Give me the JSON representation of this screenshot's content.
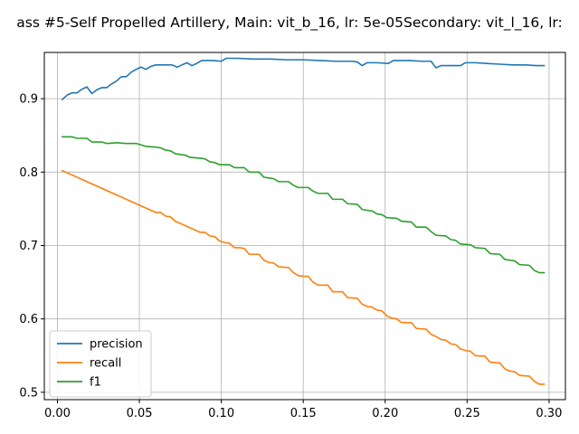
{
  "chart_data": {
    "type": "line",
    "title": "ass #5-Self Propelled Artillery, Main: vit_b_16, lr: 5e-05Secondary: vit_l_16, lr:",
    "xlabel": "",
    "ylabel": "",
    "xlim": [
      -0.008,
      0.31
    ],
    "ylim": [
      0.49,
      0.963
    ],
    "x_ticks": [
      0.0,
      0.05,
      0.1,
      0.15,
      0.2,
      0.25,
      0.3
    ],
    "x_tick_labels": [
      "0.00",
      "0.05",
      "0.10",
      "0.15",
      "0.20",
      "0.25",
      "0.30"
    ],
    "y_ticks": [
      0.5,
      0.6,
      0.7,
      0.8,
      0.9
    ],
    "y_tick_labels": [
      "0.5",
      "0.6",
      "0.7",
      "0.8",
      "0.9"
    ],
    "grid": true,
    "legend_position": "lower-left",
    "series": [
      {
        "name": "precision",
        "color": "#1f77b4",
        "points": [
          [
            0.003,
            0.899
          ],
          [
            0.006,
            0.905
          ],
          [
            0.009,
            0.908
          ],
          [
            0.012,
            0.908
          ],
          [
            0.015,
            0.913
          ],
          [
            0.018,
            0.916
          ],
          [
            0.021,
            0.907
          ],
          [
            0.024,
            0.912
          ],
          [
            0.027,
            0.915
          ],
          [
            0.03,
            0.915
          ],
          [
            0.033,
            0.92
          ],
          [
            0.036,
            0.924
          ],
          [
            0.039,
            0.93
          ],
          [
            0.042,
            0.93
          ],
          [
            0.045,
            0.936
          ],
          [
            0.048,
            0.94
          ],
          [
            0.051,
            0.943
          ],
          [
            0.054,
            0.94
          ],
          [
            0.057,
            0.944
          ],
          [
            0.06,
            0.946
          ],
          [
            0.065,
            0.946
          ],
          [
            0.07,
            0.946
          ],
          [
            0.073,
            0.943
          ],
          [
            0.076,
            0.946
          ],
          [
            0.079,
            0.949
          ],
          [
            0.082,
            0.945
          ],
          [
            0.085,
            0.948
          ],
          [
            0.088,
            0.952
          ],
          [
            0.095,
            0.952
          ],
          [
            0.1,
            0.951
          ],
          [
            0.103,
            0.955
          ],
          [
            0.11,
            0.955
          ],
          [
            0.12,
            0.954
          ],
          [
            0.13,
            0.954
          ],
          [
            0.14,
            0.953
          ],
          [
            0.15,
            0.953
          ],
          [
            0.16,
            0.952
          ],
          [
            0.17,
            0.951
          ],
          [
            0.18,
            0.951
          ],
          [
            0.183,
            0.95
          ],
          [
            0.186,
            0.945
          ],
          [
            0.189,
            0.949
          ],
          [
            0.195,
            0.949
          ],
          [
            0.202,
            0.948
          ],
          [
            0.205,
            0.952
          ],
          [
            0.215,
            0.952
          ],
          [
            0.222,
            0.951
          ],
          [
            0.228,
            0.951
          ],
          [
            0.231,
            0.942
          ],
          [
            0.234,
            0.945
          ],
          [
            0.24,
            0.945
          ],
          [
            0.246,
            0.945
          ],
          [
            0.249,
            0.949
          ],
          [
            0.255,
            0.949
          ],
          [
            0.262,
            0.948
          ],
          [
            0.27,
            0.947
          ],
          [
            0.278,
            0.946
          ],
          [
            0.286,
            0.946
          ],
          [
            0.292,
            0.945
          ],
          [
            0.297,
            0.945
          ]
        ]
      },
      {
        "name": "recall",
        "color": "#ff7f0e",
        "points": [
          [
            0.003,
            0.802
          ],
          [
            0.06,
            0.745
          ],
          [
            0.063,
            0.745
          ],
          [
            0.066,
            0.74
          ],
          [
            0.069,
            0.739
          ],
          [
            0.072,
            0.733
          ],
          [
            0.087,
            0.718
          ],
          [
            0.09,
            0.718
          ],
          [
            0.093,
            0.713
          ],
          [
            0.096,
            0.712
          ],
          [
            0.099,
            0.706
          ],
          [
            0.102,
            0.704
          ],
          [
            0.105,
            0.703
          ],
          [
            0.108,
            0.697
          ],
          [
            0.111,
            0.697
          ],
          [
            0.114,
            0.696
          ],
          [
            0.117,
            0.688
          ],
          [
            0.12,
            0.688
          ],
          [
            0.123,
            0.688
          ],
          [
            0.126,
            0.68
          ],
          [
            0.129,
            0.677
          ],
          [
            0.132,
            0.676
          ],
          [
            0.135,
            0.671
          ],
          [
            0.141,
            0.67
          ],
          [
            0.144,
            0.663
          ],
          [
            0.147,
            0.659
          ],
          [
            0.15,
            0.658
          ],
          [
            0.153,
            0.658
          ],
          [
            0.156,
            0.65
          ],
          [
            0.159,
            0.646
          ],
          [
            0.165,
            0.646
          ],
          [
            0.168,
            0.637
          ],
          [
            0.174,
            0.637
          ],
          [
            0.177,
            0.629
          ],
          [
            0.183,
            0.628
          ],
          [
            0.186,
            0.62
          ],
          [
            0.189,
            0.617
          ],
          [
            0.192,
            0.616
          ],
          [
            0.195,
            0.612
          ],
          [
            0.198,
            0.611
          ],
          [
            0.201,
            0.604
          ],
          [
            0.204,
            0.601
          ],
          [
            0.207,
            0.6
          ],
          [
            0.21,
            0.595
          ],
          [
            0.216,
            0.595
          ],
          [
            0.219,
            0.587
          ],
          [
            0.225,
            0.586
          ],
          [
            0.228,
            0.579
          ],
          [
            0.231,
            0.576
          ],
          [
            0.234,
            0.572
          ],
          [
            0.237,
            0.571
          ],
          [
            0.24,
            0.566
          ],
          [
            0.243,
            0.565
          ],
          [
            0.246,
            0.559
          ],
          [
            0.249,
            0.557
          ],
          [
            0.252,
            0.556
          ],
          [
            0.255,
            0.55
          ],
          [
            0.261,
            0.549
          ],
          [
            0.264,
            0.541
          ],
          [
            0.27,
            0.54
          ],
          [
            0.273,
            0.532
          ],
          [
            0.276,
            0.529
          ],
          [
            0.279,
            0.528
          ],
          [
            0.282,
            0.523
          ],
          [
            0.288,
            0.522
          ],
          [
            0.291,
            0.515
          ],
          [
            0.294,
            0.511
          ],
          [
            0.297,
            0.511
          ]
        ]
      },
      {
        "name": "f1",
        "color": "#2ca02c",
        "points": [
          [
            0.003,
            0.848
          ],
          [
            0.009,
            0.848
          ],
          [
            0.012,
            0.846
          ],
          [
            0.018,
            0.846
          ],
          [
            0.021,
            0.841
          ],
          [
            0.027,
            0.841
          ],
          [
            0.03,
            0.839
          ],
          [
            0.036,
            0.84
          ],
          [
            0.042,
            0.839
          ],
          [
            0.048,
            0.839
          ],
          [
            0.051,
            0.837
          ],
          [
            0.054,
            0.835
          ],
          [
            0.06,
            0.834
          ],
          [
            0.063,
            0.833
          ],
          [
            0.066,
            0.83
          ],
          [
            0.069,
            0.829
          ],
          [
            0.072,
            0.825
          ],
          [
            0.078,
            0.823
          ],
          [
            0.081,
            0.82
          ],
          [
            0.087,
            0.819
          ],
          [
            0.09,
            0.818
          ],
          [
            0.093,
            0.814
          ],
          [
            0.096,
            0.813
          ],
          [
            0.099,
            0.81
          ],
          [
            0.105,
            0.81
          ],
          [
            0.108,
            0.806
          ],
          [
            0.114,
            0.806
          ],
          [
            0.117,
            0.8
          ],
          [
            0.123,
            0.8
          ],
          [
            0.126,
            0.793
          ],
          [
            0.129,
            0.792
          ],
          [
            0.132,
            0.791
          ],
          [
            0.135,
            0.787
          ],
          [
            0.141,
            0.787
          ],
          [
            0.144,
            0.782
          ],
          [
            0.147,
            0.779
          ],
          [
            0.153,
            0.779
          ],
          [
            0.156,
            0.774
          ],
          [
            0.159,
            0.771
          ],
          [
            0.165,
            0.771
          ],
          [
            0.168,
            0.763
          ],
          [
            0.174,
            0.763
          ],
          [
            0.177,
            0.757
          ],
          [
            0.183,
            0.756
          ],
          [
            0.186,
            0.749
          ],
          [
            0.192,
            0.747
          ],
          [
            0.195,
            0.743
          ],
          [
            0.198,
            0.742
          ],
          [
            0.201,
            0.738
          ],
          [
            0.207,
            0.737
          ],
          [
            0.21,
            0.733
          ],
          [
            0.216,
            0.732
          ],
          [
            0.219,
            0.725
          ],
          [
            0.225,
            0.725
          ],
          [
            0.228,
            0.719
          ],
          [
            0.231,
            0.714
          ],
          [
            0.237,
            0.713
          ],
          [
            0.24,
            0.708
          ],
          [
            0.243,
            0.707
          ],
          [
            0.246,
            0.702
          ],
          [
            0.252,
            0.701
          ],
          [
            0.255,
            0.697
          ],
          [
            0.261,
            0.696
          ],
          [
            0.264,
            0.689
          ],
          [
            0.27,
            0.688
          ],
          [
            0.273,
            0.681
          ],
          [
            0.276,
            0.68
          ],
          [
            0.279,
            0.679
          ],
          [
            0.282,
            0.674
          ],
          [
            0.288,
            0.673
          ],
          [
            0.291,
            0.666
          ],
          [
            0.294,
            0.663
          ],
          [
            0.297,
            0.663
          ]
        ]
      }
    ]
  }
}
